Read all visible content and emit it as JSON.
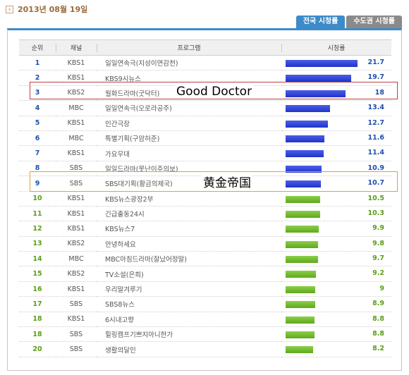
{
  "date": "2013년 08월 19일",
  "tabs": [
    "전국 시청률",
    "수도권 시청률"
  ],
  "headers": {
    "rank": "순위",
    "channel": "채널",
    "program": "프로그램",
    "rating": "시청률"
  },
  "rows": [
    {
      "rank": "1",
      "channel": "KBS1",
      "program": "일일연속극(지성이면감천)",
      "rating": "21.7",
      "value": 21.7,
      "color": "blue"
    },
    {
      "rank": "2",
      "channel": "KBS1",
      "program": "KBS9시뉴스",
      "rating": "19.7",
      "value": 19.7,
      "color": "blue"
    },
    {
      "rank": "3",
      "channel": "KBS2",
      "program": "월화드라마(굿닥터)",
      "rating": "18",
      "value": 18,
      "color": "blue"
    },
    {
      "rank": "4",
      "channel": "MBC",
      "program": "일일연속극(오로라공주)",
      "rating": "13.4",
      "value": 13.4,
      "color": "blue"
    },
    {
      "rank": "5",
      "channel": "KBS1",
      "program": "인간극장",
      "rating": "12.7",
      "value": 12.7,
      "color": "blue"
    },
    {
      "rank": "6",
      "channel": "MBC",
      "program": "특별기획(구암허준)",
      "rating": "11.6",
      "value": 11.6,
      "color": "blue"
    },
    {
      "rank": "7",
      "channel": "KBS1",
      "program": "가요무대",
      "rating": "11.4",
      "value": 11.4,
      "color": "blue"
    },
    {
      "rank": "8",
      "channel": "SBS",
      "program": "일일드라마(못난이주의보)",
      "rating": "10.9",
      "value": 10.9,
      "color": "blue"
    },
    {
      "rank": "9",
      "channel": "SBS",
      "program": "SBS대기획(황금의제국)",
      "rating": "10.7",
      "value": 10.7,
      "color": "blue"
    },
    {
      "rank": "10",
      "channel": "KBS1",
      "program": "KBS뉴스광장2부",
      "rating": "10.5",
      "value": 10.5,
      "color": "green"
    },
    {
      "rank": "11",
      "channel": "KBS1",
      "program": "긴급출동24시",
      "rating": "10.3",
      "value": 10.3,
      "color": "green"
    },
    {
      "rank": "12",
      "channel": "KBS1",
      "program": "KBS뉴스7",
      "rating": "9.9",
      "value": 9.9,
      "color": "green"
    },
    {
      "rank": "13",
      "channel": "KBS2",
      "program": "안녕하세요",
      "rating": "9.8",
      "value": 9.8,
      "color": "green"
    },
    {
      "rank": "14",
      "channel": "MBC",
      "program": "MBC아침드라마(잘났어정말)",
      "rating": "9.7",
      "value": 9.7,
      "color": "green"
    },
    {
      "rank": "15",
      "channel": "KBS2",
      "program": "TV소설(은희)",
      "rating": "9.2",
      "value": 9.2,
      "color": "green"
    },
    {
      "rank": "16",
      "channel": "KBS1",
      "program": "우리말겨루기",
      "rating": "9",
      "value": 9,
      "color": "green"
    },
    {
      "rank": "17",
      "channel": "SBS",
      "program": "SBS8뉴스",
      "rating": "8.9",
      "value": 8.9,
      "color": "green"
    },
    {
      "rank": "18",
      "channel": "KBS1",
      "program": "6시내고향",
      "rating": "8.8",
      "value": 8.8,
      "color": "green"
    },
    {
      "rank": "18",
      "channel": "SBS",
      "program": "힐링캠프기쁘지아니한가",
      "rating": "8.8",
      "value": 8.8,
      "color": "green"
    },
    {
      "rank": "20",
      "channel": "SBS",
      "program": "생활의달인",
      "rating": "8.2",
      "value": 8.2,
      "color": "green"
    }
  ],
  "annotations": {
    "red": "Good Doctor",
    "orange": "黄金帝国"
  },
  "bar_max": 22.5
}
